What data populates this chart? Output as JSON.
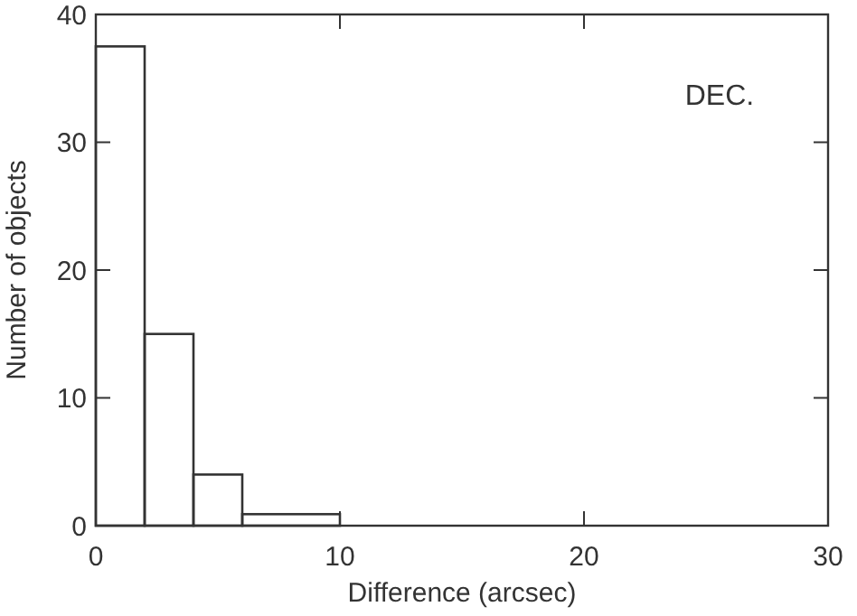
{
  "chart_data": {
    "type": "histogram",
    "xlabel": "Difference (arcsec)",
    "ylabel": "Number of objects",
    "bins": [
      0,
      2,
      4,
      6,
      10
    ],
    "values": [
      37.5,
      15,
      4,
      0.9
    ],
    "color": "#333333",
    "xlim": [
      0,
      30
    ],
    "xticks": [
      0,
      10,
      20,
      30
    ],
    "ylim": [
      0,
      40
    ],
    "yticks": [
      0,
      10,
      20,
      30,
      40
    ],
    "annotations": [
      "DEC."
    ],
    "grid": false
  }
}
